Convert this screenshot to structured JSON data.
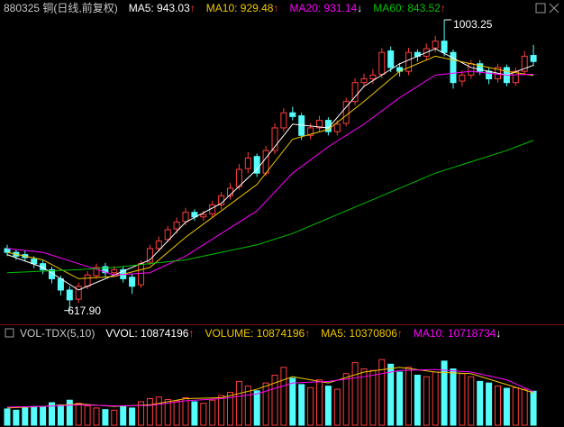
{
  "chart_data": {
    "type": "candlestick",
    "title": "880325 铜(日线,前复权)",
    "ylim": [
      602,
      1008
    ],
    "up_color": "#ff3c3c",
    "down_color": "#54fcfc",
    "open": [
      700,
      695,
      692,
      686,
      680,
      672,
      660,
      645,
      633,
      650,
      664,
      676,
      668,
      672,
      662,
      652,
      682,
      700,
      712,
      726,
      736,
      748,
      742,
      746,
      758,
      770,
      782,
      806,
      822,
      800,
      830,
      860,
      880,
      876,
      850,
      860,
      870,
      855,
      866,
      895,
      920,
      925,
      931,
      962,
      940,
      935,
      960,
      955,
      966,
      975,
      960,
      922,
      930,
      945,
      935,
      925,
      940,
      920,
      935,
      956
    ],
    "high": [
      705,
      699,
      697,
      690,
      684,
      676,
      664,
      650,
      655,
      670,
      680,
      681,
      677,
      676,
      666,
      684,
      705,
      716,
      730,
      741,
      754,
      752,
      750,
      763,
      775,
      787,
      812,
      828,
      826,
      836,
      866,
      886,
      888,
      880,
      866,
      876,
      874,
      870,
      900,
      926,
      932,
      938,
      966,
      968,
      946,
      966,
      964,
      972,
      982,
      1003.25,
      964,
      936,
      950,
      950,
      940,
      945,
      944,
      940,
      962,
      970
    ],
    "low": [
      690,
      685,
      683,
      674,
      666,
      654,
      638,
      617.9,
      628,
      646,
      660,
      663,
      663,
      655,
      640,
      648,
      678,
      696,
      708,
      720,
      731,
      737,
      737,
      741,
      752,
      765,
      778,
      800,
      795,
      796,
      825,
      855,
      870,
      844,
      845,
      855,
      850,
      850,
      862,
      890,
      914,
      918,
      926,
      934,
      928,
      930,
      948,
      950,
      960,
      955,
      912,
      915,
      925,
      930,
      918,
      920,
      915,
      916,
      930,
      942
    ],
    "close": [
      695,
      690,
      688,
      680,
      672,
      660,
      645,
      632,
      650,
      665,
      675,
      668,
      672,
      660,
      650,
      680,
      700,
      710,
      725,
      735,
      748,
      742,
      745,
      758,
      770,
      780,
      805,
      820,
      800,
      830,
      860,
      880,
      875,
      850,
      860,
      870,
      855,
      865,
      895,
      920,
      925,
      930,
      960,
      940,
      935,
      960,
      955,
      965,
      975,
      960,
      920,
      930,
      945,
      935,
      925,
      940,
      920,
      935,
      955,
      948
    ],
    "annotations": [
      {
        "value": 617.9,
        "label": "617.90"
      },
      {
        "value": 1003.25,
        "label": "1003.25"
      }
    ],
    "ma_x": [
      0,
      4,
      8,
      12,
      16,
      20,
      24,
      28,
      32,
      36,
      40,
      44,
      48,
      52,
      56,
      59
    ],
    "series": [
      {
        "label": "MA5: 943.03",
        "arrow": "↑",
        "arrow_color": "#ff3c3c",
        "color": "#ffffff",
        "values": [
          692,
          675,
          645,
          665,
          685,
          735,
          760,
          805,
          865,
          860,
          915,
          945,
          965,
          940,
          930,
          943.03
        ]
      },
      {
        "label": "MA10: 929.48",
        "arrow": "↑",
        "arrow_color": "#ff3c3c",
        "color": "#f0c800",
        "values": [
          695,
          685,
          660,
          663,
          675,
          715,
          750,
          785,
          845,
          858,
          895,
          935,
          955,
          945,
          935,
          929.48
        ]
      },
      {
        "label": "MA20: 931.14",
        "arrow": "↓",
        "arrow_color": "#ffffff",
        "color": "#ff00ff",
        "values": [
          700,
          695,
          680,
          665,
          668,
          690,
          720,
          750,
          800,
          835,
          865,
          900,
          930,
          935,
          930,
          931.14
        ]
      },
      {
        "label": "MA60: 843.52",
        "arrow": "↑",
        "arrow_color": "#ff3c3c",
        "color": "#00c000",
        "values": [
          668,
          670,
          672,
          675,
          680,
          685,
          695,
          705,
          720,
          740,
          760,
          780,
          800,
          815,
          830,
          843.52
        ]
      }
    ],
    "volume": {
      "title": "VOL-TDX(5,10)",
      "ylim": [
        0,
        26500000
      ],
      "values": [
        5200000,
        4800000,
        5500000,
        6000000,
        5800000,
        7200000,
        6500000,
        8000000,
        7000000,
        6200000,
        5500000,
        5000000,
        4800000,
        6000000,
        5500000,
        7500000,
        8500000,
        9000000,
        8200000,
        7800000,
        8800000,
        7500000,
        7000000,
        8000000,
        9500000,
        10500000,
        14000000,
        12500000,
        11000000,
        13500000,
        16000000,
        18500000,
        15000000,
        13000000,
        12000000,
        14500000,
        12500000,
        11500000,
        16500000,
        20000000,
        18000000,
        17500000,
        21000000,
        19500000,
        17000000,
        18500000,
        16000000,
        15500000,
        17000000,
        20500000,
        18000000,
        16500000,
        15500000,
        14000000,
        13500000,
        12500000,
        11800000,
        12000000,
        11500000,
        10874196
      ],
      "legend": [
        {
          "label": "VVOL: 10874196",
          "arrow": "↑",
          "arrow_color": "#ff3c3c",
          "color": "#ffffff"
        },
        {
          "label": "VOLUME: 10874196",
          "arrow": "↑",
          "arrow_color": "#ff3c3c",
          "color": "#f0c800"
        }
      ],
      "series": [
        {
          "label": "MA5: 10370806",
          "arrow": "↑",
          "arrow_color": "#ff3c3c",
          "color": "#f0c800",
          "values": [
            5500000,
            6000000,
            6800000,
            6000000,
            6500000,
            8500000,
            8800000,
            11500000,
            15500000,
            13500000,
            17000000,
            18500000,
            17000000,
            16500000,
            13000000,
            10370806
          ]
        },
        {
          "label": "MA10: 10718734",
          "arrow": "↓",
          "arrow_color": "#ffffff",
          "color": "#ff00ff",
          "values": [
            5800000,
            6000000,
            6500000,
            6200000,
            6300000,
            7800000,
            8500000,
            10000000,
            13500000,
            14000000,
            15500000,
            17500000,
            17800000,
            17000000,
            14500000,
            10718734
          ]
        }
      ]
    }
  }
}
